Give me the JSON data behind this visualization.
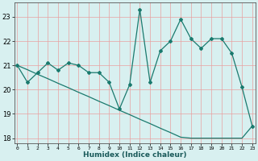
{
  "x": [
    0,
    1,
    2,
    3,
    4,
    5,
    6,
    7,
    8,
    9,
    10,
    11,
    12,
    13,
    14,
    15,
    16,
    17,
    18,
    19,
    20,
    21,
    22,
    23
  ],
  "y_main": [
    21.0,
    20.3,
    20.7,
    21.1,
    20.8,
    21.1,
    21.0,
    20.7,
    20.7,
    20.3,
    19.2,
    20.2,
    23.3,
    20.3,
    21.6,
    22.0,
    22.9,
    22.1,
    21.7,
    22.1,
    22.1,
    21.5,
    20.1,
    18.5
  ],
  "y_trend": [
    21.0,
    20.82,
    20.63,
    20.45,
    20.26,
    20.08,
    19.89,
    19.71,
    19.52,
    19.34,
    19.15,
    18.97,
    18.78,
    18.6,
    18.41,
    18.23,
    18.04,
    18.0,
    18.0,
    18.0,
    18.0,
    18.0,
    18.0,
    18.5
  ],
  "line_color": "#1a7a6e",
  "bg_color": "#d8f0f0",
  "grid_color": "#b0d8d8",
  "xlabel": "Humidex (Indice chaleur)",
  "ylim": [
    17.8,
    23.6
  ],
  "yticks": [
    18,
    19,
    20,
    21,
    22,
    23
  ],
  "xticks": [
    0,
    1,
    2,
    3,
    4,
    5,
    6,
    7,
    8,
    9,
    10,
    11,
    12,
    13,
    14,
    15,
    16,
    17,
    18,
    19,
    20,
    21,
    22,
    23
  ],
  "xlim": [
    -0.3,
    23.3
  ]
}
